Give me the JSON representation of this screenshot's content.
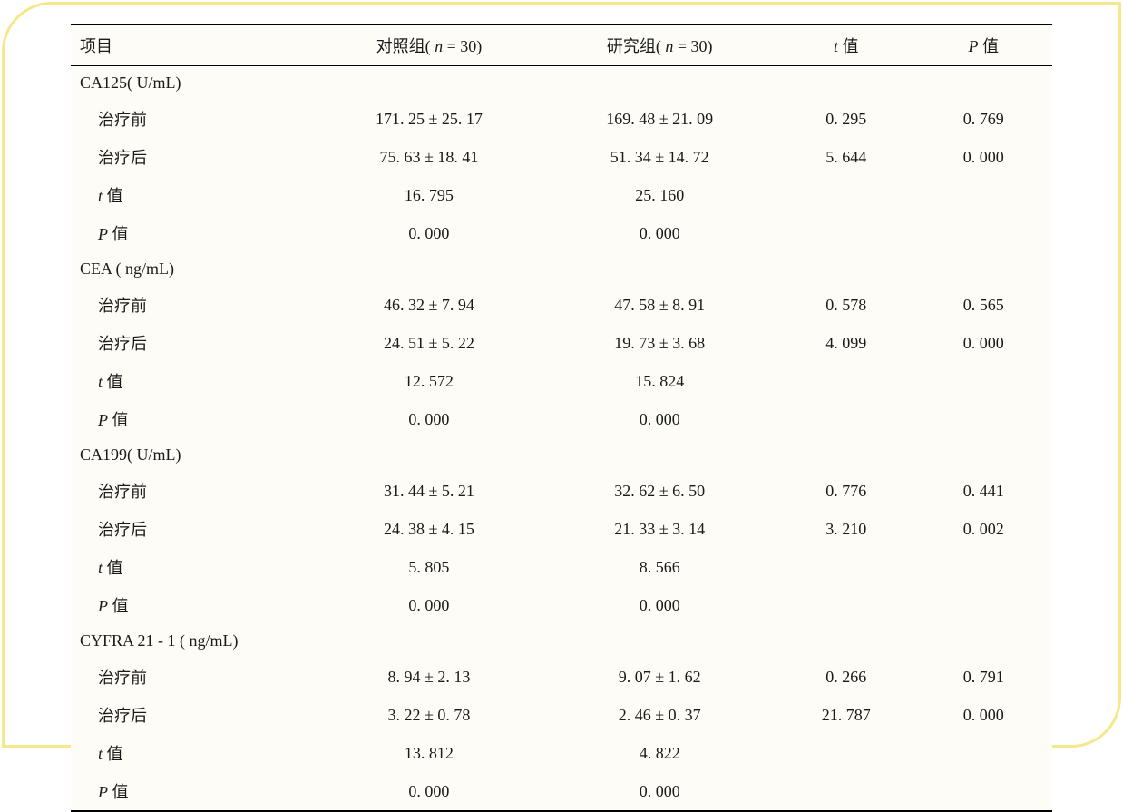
{
  "style": {
    "border_color": "#f5e88a",
    "background": "#fdfcf6",
    "text_color": "#1a1a1a",
    "rule_color": "#000000",
    "font_size_pt": 14,
    "border_radius_tl_br": 55
  },
  "table": {
    "columns": [
      {
        "label": "项目",
        "align": "left"
      },
      {
        "label_pre": "对照组( ",
        "label_var": "n",
        "label_post": " = 30)",
        "align": "center"
      },
      {
        "label_pre": "研究组( ",
        "label_var": "n",
        "label_post": " = 30)",
        "align": "center"
      },
      {
        "label_var": "t",
        "label_post": " 值",
        "align": "center"
      },
      {
        "label_var": "P",
        "label_post": " 值",
        "align": "center"
      }
    ],
    "sections": [
      {
        "header": "CA125( U/mL)",
        "rows": [
          {
            "label": "治疗前",
            "control": "171. 25 ± 25. 17",
            "study": "169. 48 ± 21. 09",
            "t": "0. 295",
            "p": "0. 769"
          },
          {
            "label": "治疗后",
            "control": "75. 63 ± 18. 41",
            "study": "51. 34 ± 14. 72",
            "t": "5. 644",
            "p": "0. 000"
          },
          {
            "label_var": "t",
            "label_post": " 值",
            "control": "16. 795",
            "study": "25. 160",
            "t": "",
            "p": ""
          },
          {
            "label_var": "P",
            "label_post": " 值",
            "control": "0. 000",
            "study": "0. 000",
            "t": "",
            "p": ""
          }
        ]
      },
      {
        "header": "CEA ( ng/mL)",
        "rows": [
          {
            "label": "治疗前",
            "control": "46. 32 ± 7. 94",
            "study": "47. 58 ± 8. 91",
            "t": "0. 578",
            "p": "0. 565"
          },
          {
            "label": "治疗后",
            "control": "24. 51 ± 5. 22",
            "study": "19. 73 ± 3. 68",
            "t": "4. 099",
            "p": "0. 000"
          },
          {
            "label_var": "t",
            "label_post": " 值",
            "control": "12. 572",
            "study": "15. 824",
            "t": "",
            "p": ""
          },
          {
            "label_var": "P",
            "label_post": " 值",
            "control": "0. 000",
            "study": "0. 000",
            "t": "",
            "p": ""
          }
        ]
      },
      {
        "header": "CA199( U/mL)",
        "rows": [
          {
            "label": "治疗前",
            "control": "31. 44 ± 5. 21",
            "study": "32. 62 ± 6. 50",
            "t": "0. 776",
            "p": "0. 441"
          },
          {
            "label": "治疗后",
            "control": "24. 38 ± 4. 15",
            "study": "21. 33 ± 3. 14",
            "t": "3. 210",
            "p": "0. 002"
          },
          {
            "label_var": "t",
            "label_post": " 值",
            "control": "5. 805",
            "study": "8. 566",
            "t": "",
            "p": ""
          },
          {
            "label_var": "P",
            "label_post": " 值",
            "control": "0. 000",
            "study": "0. 000",
            "t": "",
            "p": ""
          }
        ]
      },
      {
        "header": "CYFRA 21 - 1 ( ng/mL)",
        "rows": [
          {
            "label": "治疗前",
            "control": "8. 94 ± 2. 13",
            "study": "9. 07 ± 1. 62",
            "t": "0. 266",
            "p": "0. 791"
          },
          {
            "label": "治疗后",
            "control": "3. 22 ± 0. 78",
            "study": "2. 46 ± 0. 37",
            "t": "21. 787",
            "p": "0. 000"
          },
          {
            "label_var": "t",
            "label_post": " 值",
            "control": "13. 812",
            "study": "4. 822",
            "t": "",
            "p": ""
          },
          {
            "label_var": "P",
            "label_post": " 值",
            "control": "0. 000",
            "study": "0. 000",
            "t": "",
            "p": ""
          }
        ]
      }
    ]
  }
}
